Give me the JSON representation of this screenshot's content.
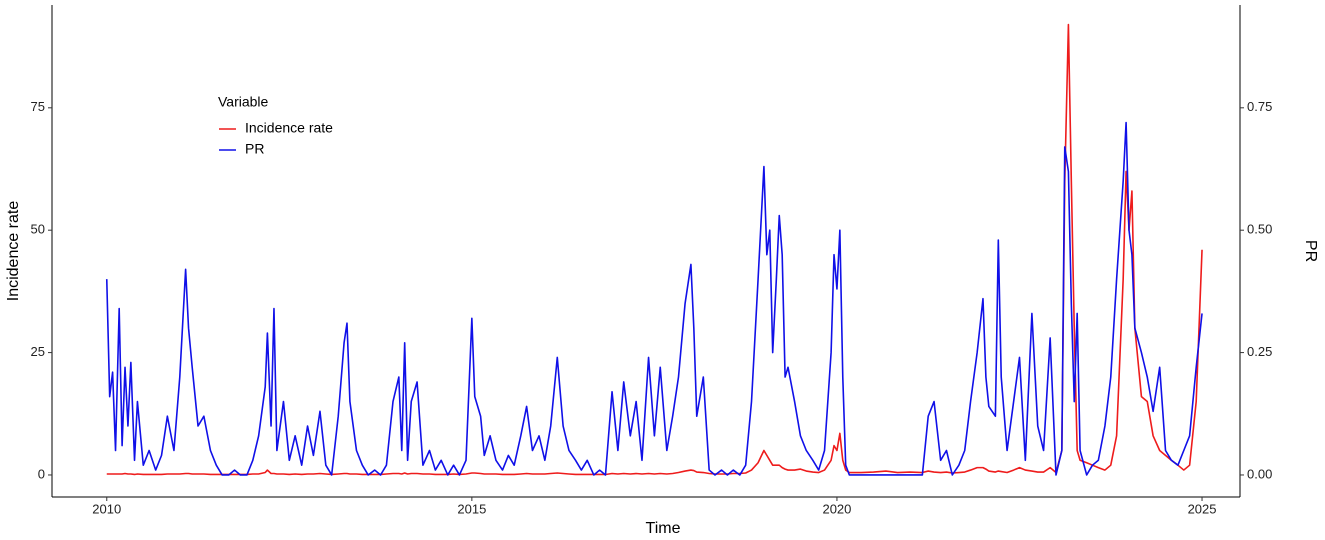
{
  "chart_data": {
    "type": "line",
    "x_label": "Time",
    "y_label": "Incidence rate",
    "y2_label": "PR",
    "legend_title": "Variable",
    "legend_position": "top-left",
    "x": [
      2010,
      2010.04,
      2010.08,
      2010.12,
      2010.17,
      2010.21,
      2010.25,
      2010.29,
      2010.33,
      2010.38,
      2010.42,
      2010.5,
      2010.58,
      2010.67,
      2010.75,
      2010.83,
      2010.92,
      2011,
      2011.08,
      2011.12,
      2011.17,
      2011.25,
      2011.33,
      2011.42,
      2011.5,
      2011.58,
      2011.67,
      2011.75,
      2011.83,
      2011.92,
      2012,
      2012.08,
      2012.17,
      2012.2,
      2012.25,
      2012.29,
      2012.33,
      2012.42,
      2012.5,
      2012.58,
      2012.67,
      2012.75,
      2012.83,
      2012.92,
      2013,
      2013.08,
      2013.17,
      2013.25,
      2013.29,
      2013.33,
      2013.42,
      2013.5,
      2013.58,
      2013.67,
      2013.75,
      2013.83,
      2013.92,
      2014,
      2014.04,
      2014.08,
      2014.12,
      2014.17,
      2014.25,
      2014.33,
      2014.42,
      2014.5,
      2014.58,
      2014.67,
      2014.75,
      2014.83,
      2014.92,
      2015,
      2015.04,
      2015.12,
      2015.17,
      2015.25,
      2015.33,
      2015.42,
      2015.5,
      2015.58,
      2015.67,
      2015.75,
      2015.83,
      2015.92,
      2016,
      2016.08,
      2016.17,
      2016.25,
      2016.33,
      2016.42,
      2016.5,
      2016.58,
      2016.67,
      2016.75,
      2016.83,
      2016.92,
      2017,
      2017.08,
      2017.17,
      2017.25,
      2017.33,
      2017.42,
      2017.5,
      2017.58,
      2017.67,
      2017.75,
      2017.83,
      2017.92,
      2018,
      2018.04,
      2018.08,
      2018.17,
      2018.25,
      2018.33,
      2018.42,
      2018.5,
      2018.58,
      2018.67,
      2018.75,
      2018.83,
      2018.92,
      2019,
      2019.04,
      2019.08,
      2019.12,
      2019.17,
      2019.21,
      2019.25,
      2019.29,
      2019.33,
      2019.42,
      2019.5,
      2019.58,
      2019.67,
      2019.75,
      2019.83,
      2019.92,
      2019.96,
      2020,
      2020.04,
      2020.08,
      2020.12,
      2020.17,
      2020.33,
      2020.5,
      2020.67,
      2020.83,
      2021,
      2021.17,
      2021.25,
      2021.33,
      2021.42,
      2021.5,
      2021.58,
      2021.67,
      2021.75,
      2021.83,
      2021.92,
      2022,
      2022.04,
      2022.08,
      2022.17,
      2022.21,
      2022.25,
      2022.33,
      2022.42,
      2022.5,
      2022.58,
      2022.67,
      2022.75,
      2022.83,
      2022.92,
      2023,
      2023.08,
      2023.12,
      2023.17,
      2023.21,
      2023.25,
      2023.29,
      2023.33,
      2023.42,
      2023.5,
      2023.58,
      2023.67,
      2023.75,
      2023.83,
      2023.92,
      2023.96,
      2024,
      2024.04,
      2024.08,
      2024.17,
      2024.25,
      2024.33,
      2024.42,
      2024.5,
      2024.58,
      2024.67,
      2024.75,
      2024.83,
      2024.92,
      2025
    ],
    "series": [
      {
        "name": "Incidence rate",
        "color": "#ee1c1c",
        "axis": "y",
        "values": [
          0.2,
          0.2,
          0.2,
          0.2,
          0.2,
          0.2,
          0.3,
          0.2,
          0.2,
          0.1,
          0.2,
          0.1,
          0.1,
          0.1,
          0.1,
          0.2,
          0.2,
          0.2,
          0.3,
          0.3,
          0.2,
          0.2,
          0.2,
          0.1,
          0.1,
          0.1,
          0.1,
          0.1,
          0.1,
          0.1,
          0.2,
          0.2,
          0.5,
          1,
          0.3,
          0.3,
          0.2,
          0.2,
          0.1,
          0.2,
          0.1,
          0.2,
          0.2,
          0.3,
          0.2,
          0.1,
          0.2,
          0.3,
          0.3,
          0.2,
          0.2,
          0.1,
          0.1,
          0.1,
          0.1,
          0.2,
          0.3,
          0.3,
          0.2,
          0.4,
          0.2,
          0.3,
          0.3,
          0.2,
          0.2,
          0.1,
          0.1,
          0.1,
          0.2,
          0.1,
          0.2,
          0.4,
          0.4,
          0.3,
          0.2,
          0.2,
          0.2,
          0.1,
          0.1,
          0.1,
          0.2,
          0.3,
          0.2,
          0.2,
          0.2,
          0.3,
          0.4,
          0.3,
          0.2,
          0.1,
          0.1,
          0.1,
          0.1,
          0.1,
          0.1,
          0.3,
          0.2,
          0.3,
          0.2,
          0.3,
          0.2,
          0.3,
          0.2,
          0.3,
          0.2,
          0.3,
          0.5,
          0.8,
          1,
          0.9,
          0.6,
          0.5,
          0.3,
          0.2,
          0.2,
          0.2,
          0.3,
          0.3,
          0.4,
          1,
          2.5,
          5,
          4,
          3,
          2,
          2,
          2,
          1.5,
          1.2,
          1,
          1,
          1.2,
          0.8,
          0.6,
          0.5,
          1,
          3,
          6,
          5,
          8.5,
          3,
          1,
          0.5,
          0.5,
          0.6,
          0.8,
          0.5,
          0.6,
          0.5,
          0.8,
          0.6,
          0.5,
          0.6,
          0.4,
          0.5,
          0.6,
          1,
          1.5,
          1.5,
          1.2,
          0.8,
          0.6,
          0.8,
          0.7,
          0.5,
          1,
          1.5,
          1,
          0.8,
          0.6,
          0.6,
          1.5,
          0.5,
          5,
          60,
          92,
          60,
          30,
          5,
          3,
          2.5,
          2,
          1.5,
          1,
          2,
          8,
          40,
          62,
          50,
          58,
          30,
          16,
          15,
          8,
          5,
          4,
          3,
          2,
          1,
          2,
          15,
          46
        ]
      },
      {
        "name": "PR",
        "color": "#1010e8",
        "axis": "y2",
        "values": [
          0.4,
          0.16,
          0.21,
          0.05,
          0.34,
          0.06,
          0.22,
          0.1,
          0.23,
          0.03,
          0.15,
          0.02,
          0.05,
          0.01,
          0.04,
          0.12,
          0.05,
          0.2,
          0.42,
          0.3,
          0.22,
          0.1,
          0.12,
          0.05,
          0.02,
          0,
          0,
          0.01,
          0,
          0,
          0.03,
          0.08,
          0.18,
          0.29,
          0.1,
          0.34,
          0.05,
          0.15,
          0.03,
          0.08,
          0.02,
          0.1,
          0.04,
          0.13,
          0.02,
          0,
          0.12,
          0.27,
          0.31,
          0.15,
          0.05,
          0.02,
          0,
          0.01,
          0,
          0.02,
          0.15,
          0.2,
          0.05,
          0.27,
          0.03,
          0.15,
          0.19,
          0.02,
          0.05,
          0.01,
          0.03,
          0,
          0.02,
          0,
          0.03,
          0.32,
          0.16,
          0.12,
          0.04,
          0.08,
          0.03,
          0.01,
          0.04,
          0.02,
          0.08,
          0.14,
          0.05,
          0.08,
          0.03,
          0.1,
          0.24,
          0.1,
          0.05,
          0.03,
          0.01,
          0.03,
          0,
          0.01,
          0,
          0.17,
          0.05,
          0.19,
          0.08,
          0.15,
          0.03,
          0.24,
          0.08,
          0.22,
          0.05,
          0.12,
          0.2,
          0.35,
          0.43,
          0.3,
          0.12,
          0.2,
          0.01,
          0,
          0.01,
          0,
          0.01,
          0,
          0.02,
          0.15,
          0.4,
          0.63,
          0.45,
          0.5,
          0.25,
          0.4,
          0.53,
          0.45,
          0.2,
          0.22,
          0.15,
          0.08,
          0.05,
          0.03,
          0.01,
          0.05,
          0.25,
          0.45,
          0.38,
          0.5,
          0.2,
          0.02,
          0,
          0,
          0,
          0,
          0,
          0,
          0,
          0.12,
          0.15,
          0.03,
          0.05,
          0,
          0.02,
          0.05,
          0.15,
          0.25,
          0.36,
          0.2,
          0.14,
          0.12,
          0.48,
          0.2,
          0.05,
          0.15,
          0.24,
          0.03,
          0.33,
          0.1,
          0.05,
          0.28,
          0,
          0.05,
          0.67,
          0.62,
          0.35,
          0.15,
          0.33,
          0.05,
          0,
          0.02,
          0.03,
          0.1,
          0.2,
          0.4,
          0.6,
          0.72,
          0.5,
          0.45,
          0.3,
          0.25,
          0.2,
          0.13,
          0.22,
          0.05,
          0.03,
          0.02,
          0.05,
          0.08,
          0.22,
          0.33
        ]
      }
    ],
    "xlim": [
      2009.25,
      2025.52
    ],
    "xticks": [
      2010,
      2015,
      2020,
      2025
    ],
    "ylim": [
      -4.5,
      96
    ],
    "yticks": [
      0,
      25,
      50,
      75
    ],
    "y2lim": [
      -0.045,
      0.96
    ],
    "y2ticks": [
      {
        "value": 0,
        "label": "0.00"
      },
      {
        "value": 0.25,
        "label": "0.25"
      },
      {
        "value": 0.5,
        "label": "0.50"
      },
      {
        "value": 0.75,
        "label": "0.75"
      }
    ],
    "grid": false
  }
}
